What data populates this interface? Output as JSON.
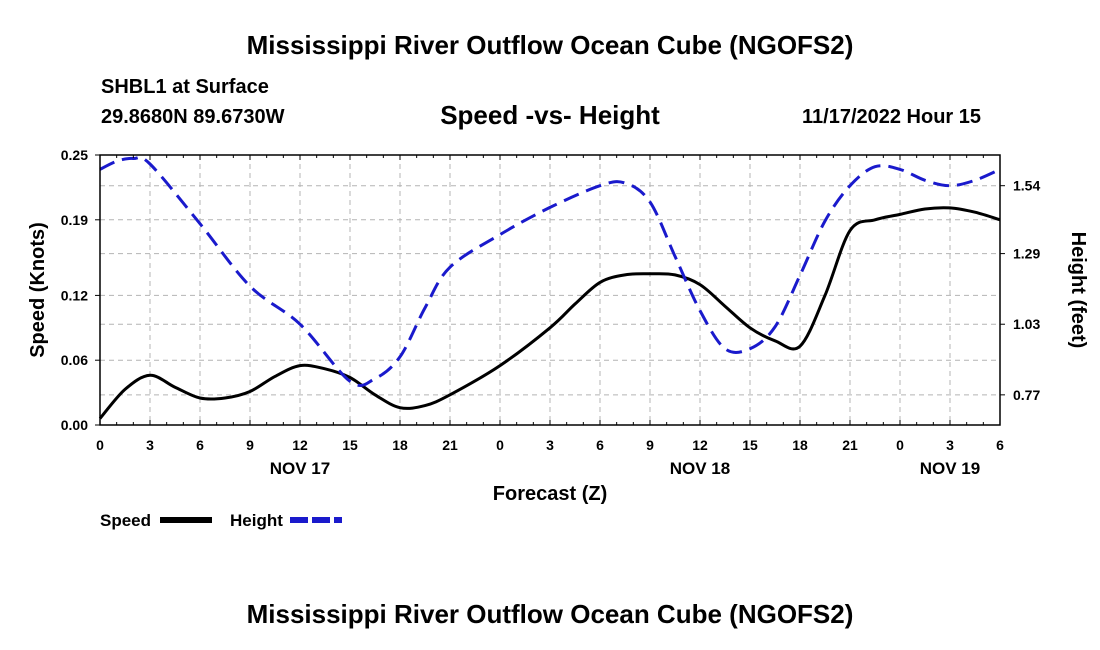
{
  "title": "Mississippi River Outflow Ocean Cube (NGOFS2)",
  "title_repeat": "Mississippi River Outflow Ocean Cube (NGOFS2)",
  "station": "SHBL1 at Surface",
  "location": "29.8680N  89.6730W",
  "subtitle": "Speed -vs- Height",
  "datetime": "11/17/2022 Hour 15",
  "chart_data": {
    "type": "line",
    "title": "Speed -vs- Height",
    "xlabel": "Forecast (Z)",
    "ylabel": "Speed (Knots)",
    "y2label": "Height (feet)",
    "x_range": [
      0,
      54
    ],
    "ylim": [
      0,
      0.25
    ],
    "y2lim": [
      0.659,
      1.653
    ],
    "y_ticks": [
      0.0,
      0.06,
      0.12,
      0.19,
      0.25
    ],
    "y_tick_labels": [
      "0.00",
      "0.06",
      "0.12",
      "0.19",
      "0.25"
    ],
    "y2_ticks": [
      0.77,
      1.03,
      1.29,
      1.54
    ],
    "y2_tick_labels": [
      "0.77",
      "1.03",
      "1.29",
      "1.54"
    ],
    "x_tick_labels": [
      "0",
      "3",
      "6",
      "9",
      "12",
      "15",
      "18",
      "21",
      "0",
      "3",
      "6",
      "9",
      "12",
      "15",
      "18",
      "21",
      "0",
      "3",
      "6"
    ],
    "date_labels": [
      {
        "label": "NOV 17",
        "x": 12
      },
      {
        "label": "NOV 18",
        "x": 36
      },
      {
        "label": "NOV 19",
        "x": 51
      }
    ],
    "grid": true,
    "series": [
      {
        "name": "Speed",
        "axis": "left",
        "color": "#000000",
        "dash": "solid",
        "x": [
          0,
          1.5,
          3,
          4.5,
          6,
          7.5,
          9,
          10.5,
          12,
          13.5,
          15,
          16.5,
          18,
          19.5,
          21,
          24,
          27,
          28.5,
          30,
          31.5,
          33,
          34.5,
          36,
          37.5,
          39,
          40.5,
          42,
          43.5,
          45,
          46.5,
          48,
          49.5,
          51,
          52.5,
          54
        ],
        "y": [
          0.006,
          0.033,
          0.046,
          0.035,
          0.025,
          0.025,
          0.031,
          0.045,
          0.055,
          0.052,
          0.044,
          0.028,
          0.016,
          0.018,
          0.028,
          0.055,
          0.09,
          0.112,
          0.132,
          0.139,
          0.14,
          0.139,
          0.13,
          0.11,
          0.09,
          0.078,
          0.073,
          0.12,
          0.18,
          0.19,
          0.195,
          0.2,
          0.201,
          0.197,
          0.19
        ]
      },
      {
        "name": "Height",
        "axis": "right",
        "color": "#1a1acc",
        "dash": "dashed",
        "x": [
          0,
          1,
          2,
          3,
          6,
          9,
          12,
          15,
          16.5,
          18,
          19.5,
          21,
          24,
          27,
          30,
          31.5,
          33,
          34.5,
          36,
          37.5,
          39,
          40.5,
          42,
          43.5,
          45,
          46.5,
          48,
          49.5,
          51,
          52.5,
          54
        ],
        "y": [
          1.6,
          1.63,
          1.64,
          1.62,
          1.4,
          1.17,
          1.03,
          0.82,
          0.83,
          0.91,
          1.09,
          1.24,
          1.36,
          1.46,
          1.54,
          1.55,
          1.48,
          1.28,
          1.08,
          0.94,
          0.94,
          1.02,
          1.21,
          1.41,
          1.54,
          1.61,
          1.6,
          1.56,
          1.54,
          1.56,
          1.6
        ]
      }
    ],
    "legend": [
      {
        "label": "Speed",
        "color": "#000000",
        "dash": "solid"
      },
      {
        "label": "Height",
        "color": "#1a1acc",
        "dash": "dashed"
      }
    ]
  }
}
